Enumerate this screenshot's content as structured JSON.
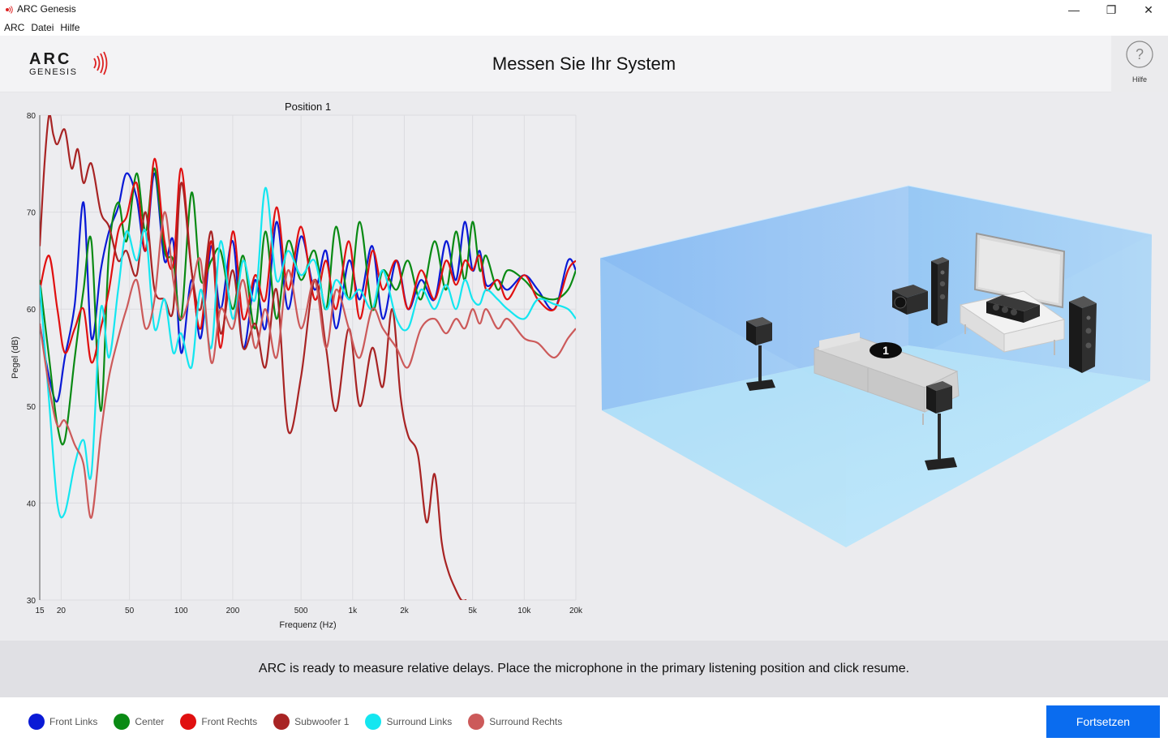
{
  "window": {
    "title": "ARC Genesis",
    "controls": {
      "minimize": "—",
      "maximize": "❐",
      "close": "✕"
    }
  },
  "menu": [
    "ARC",
    "Datei",
    "Hilfe"
  ],
  "header": {
    "logo_top": "ARC",
    "logo_bottom": "GENESIS",
    "title": "Messen Sie Ihr System",
    "help_label": "Hilfe",
    "help_icon": "question-circle-icon"
  },
  "chart_data": {
    "type": "line",
    "title": "Position 1",
    "xlabel": "Frequenz (Hz)",
    "ylabel": "Pegel (dB)",
    "x_scale": "log",
    "xlim": [
      15,
      20000
    ],
    "ylim": [
      30,
      80
    ],
    "x_ticks": [
      {
        "v": 15,
        "l": "15"
      },
      {
        "v": 20,
        "l": "20"
      },
      {
        "v": 50,
        "l": "50"
      },
      {
        "v": 100,
        "l": "100"
      },
      {
        "v": 200,
        "l": "200"
      },
      {
        "v": 500,
        "l": "500"
      },
      {
        "v": 1000,
        "l": "1k"
      },
      {
        "v": 2000,
        "l": "2k"
      },
      {
        "v": 5000,
        "l": "5k"
      },
      {
        "v": 10000,
        "l": "10k"
      },
      {
        "v": 20000,
        "l": "20k"
      }
    ],
    "y_ticks": [
      30,
      40,
      50,
      60,
      70,
      80
    ],
    "grid": true,
    "series": [
      {
        "name": "Front Links",
        "color": "#0a1ad6",
        "x": [
          15,
          17,
          19,
          21,
          24,
          27,
          30,
          34,
          38,
          43,
          48,
          55,
          62,
          70,
          80,
          90,
          100,
          115,
          130,
          150,
          170,
          200,
          230,
          270,
          310,
          360,
          420,
          500,
          600,
          700,
          800,
          950,
          1100,
          1300,
          1500,
          1800,
          2100,
          2500,
          3000,
          3500,
          4000,
          4500,
          5000,
          5500,
          6000,
          7000,
          8000,
          10000,
          12000,
          15000,
          18000,
          20000
        ],
        "y": [
          58.5,
          53,
          50.5,
          55,
          60.5,
          71,
          57,
          64,
          68,
          70.5,
          74,
          71.5,
          66,
          74,
          65,
          67,
          55.5,
          63,
          57,
          66.5,
          60,
          67,
          56,
          63,
          58,
          69,
          60,
          67.5,
          62,
          66,
          58,
          65,
          61,
          66.5,
          59,
          65,
          60,
          63,
          61,
          67,
          63,
          69,
          64,
          66,
          62.5,
          63,
          62,
          63.5,
          62,
          60,
          65,
          64
        ]
      },
      {
        "name": "Center",
        "color": "#0a8a14",
        "x": [
          15,
          17,
          19,
          21,
          24,
          27,
          30,
          34,
          38,
          43,
          48,
          55,
          62,
          70,
          80,
          90,
          100,
          115,
          130,
          150,
          170,
          200,
          230,
          270,
          310,
          360,
          420,
          500,
          600,
          700,
          800,
          950,
          1100,
          1300,
          1500,
          1800,
          2100,
          2500,
          3000,
          3500,
          4000,
          4500,
          5000,
          5500,
          6000,
          7000,
          8000,
          10000,
          12000,
          15000,
          18000,
          20000
        ],
        "y": [
          63,
          55,
          48,
          46.5,
          55,
          62,
          67,
          49.5,
          66,
          71,
          67,
          74,
          68,
          74.5,
          66,
          65,
          59,
          72,
          63,
          65,
          66,
          60,
          65.5,
          58,
          68,
          59,
          67,
          63,
          66,
          60,
          68.5,
          61,
          69,
          60,
          64,
          62,
          65,
          61,
          67,
          62,
          68,
          63,
          69,
          64,
          65.5,
          62,
          64,
          63,
          61.5,
          61,
          62,
          64
        ]
      },
      {
        "name": "Front Rechts",
        "color": "#e01010",
        "x": [
          15,
          17,
          19,
          21,
          24,
          27,
          30,
          34,
          38,
          43,
          48,
          55,
          62,
          70,
          80,
          90,
          100,
          115,
          130,
          150,
          170,
          200,
          230,
          270,
          310,
          360,
          420,
          500,
          600,
          700,
          800,
          950,
          1100,
          1300,
          1500,
          1800,
          2100,
          2500,
          3000,
          3500,
          4000,
          4500,
          5000,
          5500,
          6000,
          7000,
          8000,
          10000,
          12000,
          15000,
          18000,
          20000
        ],
        "y": [
          62,
          65.5,
          60,
          55.5,
          58,
          60,
          54.5,
          58,
          62,
          68,
          69.5,
          73,
          66,
          75.5,
          67,
          64.5,
          74.5,
          64,
          58,
          67,
          56,
          68,
          59,
          63.5,
          61,
          70.5,
          62,
          68.5,
          61,
          65,
          60,
          67,
          59,
          66,
          62,
          65,
          60,
          64,
          61,
          65,
          62.5,
          65,
          64,
          65.5,
          62,
          63,
          61,
          63.5,
          61,
          60,
          64,
          65
        ]
      },
      {
        "name": "Subwoofer 1",
        "color": "#a82424",
        "x": [
          15,
          16,
          17,
          18,
          19,
          21,
          23,
          25,
          27,
          30,
          34,
          38,
          43,
          48,
          55,
          62,
          70,
          80,
          90,
          100,
          115,
          130,
          150,
          170,
          200,
          230,
          270,
          310,
          360,
          420,
          500,
          600,
          700,
          800,
          950,
          1100,
          1300,
          1500,
          1700,
          1900,
          2100,
          2400,
          2700,
          3000,
          3300,
          3600,
          4000,
          4300,
          4600
        ],
        "y": [
          66.5,
          75,
          80,
          78,
          77,
          78.5,
          74.5,
          76.5,
          73,
          75,
          70,
          68.5,
          65,
          66,
          63.5,
          70,
          62,
          61,
          60,
          73,
          64,
          60,
          68,
          57.5,
          64,
          56,
          58.5,
          54,
          62,
          47.5,
          53,
          63,
          56,
          49.5,
          58,
          50,
          56,
          52,
          60,
          51,
          47,
          45,
          38,
          43,
          36,
          33,
          31,
          30,
          30
        ]
      },
      {
        "name": "Surround Links",
        "color": "#14e6f0",
        "x": [
          15,
          17,
          19,
          21,
          24,
          27,
          30,
          34,
          38,
          43,
          48,
          55,
          62,
          70,
          80,
          90,
          100,
          115,
          130,
          150,
          170,
          200,
          230,
          270,
          310,
          360,
          420,
          500,
          600,
          700,
          800,
          950,
          1100,
          1300,
          1500,
          1800,
          2100,
          2500,
          3000,
          3500,
          4000,
          4500,
          5000,
          5500,
          6000,
          7000,
          8000,
          10000,
          12000,
          15000,
          18000,
          20000
        ],
        "y": [
          62.5,
          50.5,
          40,
          39,
          44,
          46.5,
          43,
          60,
          55,
          62,
          68,
          65,
          68,
          58,
          61,
          55.5,
          57.5,
          54,
          62,
          56,
          67,
          59,
          65,
          61,
          72.5,
          63,
          66,
          63.5,
          65,
          60,
          63,
          61,
          62,
          60,
          64,
          59,
          58,
          62,
          60,
          62.5,
          60,
          63,
          61,
          60.5,
          62,
          61,
          60,
          59,
          61,
          60.5,
          60,
          59
        ]
      },
      {
        "name": "Surround Rechts",
        "color": "#cc5a5a",
        "x": [
          15,
          17,
          19,
          21,
          24,
          27,
          30,
          34,
          38,
          43,
          48,
          55,
          62,
          70,
          80,
          90,
          100,
          115,
          130,
          150,
          170,
          200,
          230,
          270,
          310,
          360,
          420,
          500,
          600,
          700,
          800,
          950,
          1100,
          1300,
          1500,
          1800,
          2100,
          2500,
          3000,
          3500,
          4000,
          4500,
          5000,
          5500,
          6000,
          7000,
          8000,
          10000,
          12000,
          15000,
          18000,
          20000
        ],
        "y": [
          58.5,
          52,
          48,
          48.5,
          46,
          44,
          38.5,
          47,
          53,
          57,
          60,
          63,
          58,
          61,
          70,
          63,
          59,
          62,
          65,
          54.5,
          60,
          58,
          63,
          56,
          60,
          55,
          64,
          58,
          63,
          56,
          62,
          58,
          55,
          60,
          58,
          56,
          54,
          58,
          59,
          57.5,
          59,
          58,
          60,
          58.5,
          60,
          58,
          59,
          57,
          56.5,
          55,
          57,
          58
        ]
      }
    ]
  },
  "room": {
    "listening_position": "1"
  },
  "message": "ARC is ready to measure relative delays. Place the microphone in the primary listening position and click resume.",
  "legend": [
    {
      "name": "Front Links",
      "color": "#0a1ad6"
    },
    {
      "name": "Center",
      "color": "#0a8a14"
    },
    {
      "name": "Front Rechts",
      "color": "#e01010"
    },
    {
      "name": "Subwoofer 1",
      "color": "#a82424"
    },
    {
      "name": "Surround Links",
      "color": "#14e6f0"
    },
    {
      "name": "Surround Rechts",
      "color": "#cc5a5a"
    }
  ],
  "continue_label": "Fortsetzen"
}
